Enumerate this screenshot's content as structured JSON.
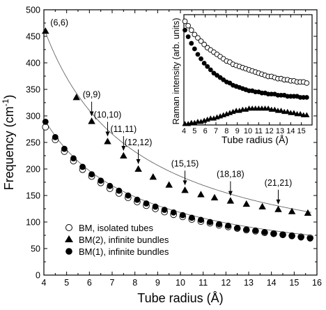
{
  "chart_data": [
    {
      "type": "scatter",
      "xlabel": "Tube radius (Å)",
      "ylabel": "Frequency (cm",
      "ylabel_sup": "-1",
      "ylabel_tail": ")",
      "xlim": [
        4,
        16
      ],
      "ylim": [
        0,
        500
      ],
      "xticks": [
        "4",
        "5",
        "6",
        "7",
        "8",
        "9",
        "10",
        "11",
        "12",
        "13",
        "14",
        "15",
        "16"
      ],
      "yticks": [
        "0",
        "50",
        "100",
        "150",
        "200",
        "250",
        "300",
        "350",
        "400",
        "450",
        "500"
      ],
      "series": [
        {
          "name": "BM, isolated tubes",
          "marker": "open-circle",
          "x": [
            4.07,
            4.5,
            4.9,
            5.3,
            5.7,
            6.1,
            6.5,
            6.9,
            7.3,
            7.7,
            8.1,
            8.5,
            8.9,
            9.3,
            9.7,
            10.1,
            10.5,
            10.9,
            11.3,
            11.7,
            12.1,
            12.5,
            12.9,
            13.3,
            13.7,
            14.1,
            14.5,
            14.9,
            15.3,
            15.7
          ],
          "y": [
            279,
            255,
            233,
            215,
            199,
            186,
            174,
            163,
            154,
            146,
            138,
            131,
            125,
            119,
            114,
            110,
            105,
            101,
            98,
            94,
            91,
            88,
            85,
            83,
            80,
            78,
            76,
            74,
            72,
            70
          ]
        },
        {
          "name": "BM(2), infinite bundles",
          "marker": "filled-triangle",
          "x": [
            4.07,
            5.43,
            6.1,
            6.8,
            7.5,
            8.15,
            8.8,
            9.5,
            10.2,
            10.9,
            11.5,
            12.2,
            12.9,
            13.6,
            14.3,
            14.9,
            15.6
          ],
          "y": [
            460,
            335,
            290,
            252,
            225,
            200,
            185,
            170,
            160,
            152,
            146,
            140,
            134,
            129,
            124,
            120,
            117
          ]
        },
        {
          "name": "BM(1), infinite bundles",
          "marker": "filled-circle",
          "x": [
            4.07,
            4.5,
            4.9,
            5.3,
            5.7,
            6.1,
            6.5,
            6.9,
            7.3,
            7.7,
            8.1,
            8.5,
            8.9,
            9.3,
            9.7,
            10.1,
            10.5,
            10.9,
            11.3,
            11.7,
            12.1,
            12.5,
            12.9,
            13.3,
            13.7,
            14.1,
            14.5,
            14.9,
            15.3,
            15.7
          ],
          "y": [
            289,
            260,
            238,
            220,
            204,
            190,
            178,
            168,
            159,
            150,
            142,
            135,
            129,
            123,
            118,
            113,
            108,
            104,
            100,
            96,
            93,
            89,
            86,
            84,
            81,
            78,
            76,
            74,
            71,
            69
          ]
        }
      ],
      "fit_curves": [
        {
          "series": "BM(2), infinite bundles",
          "coef": 1862,
          "exp": 1
        },
        {
          "series": "BM(1), infinite bundles",
          "coef": 1180,
          "exp": 1
        }
      ],
      "annotations": [
        {
          "label": "(6,6)",
          "x": 4.07,
          "y": 460,
          "arrow": false
        },
        {
          "label": "(9,9)",
          "x": 6.1,
          "y": 290,
          "arrow": true
        },
        {
          "label": "(10,10)",
          "x": 6.8,
          "y": 252,
          "arrow": true
        },
        {
          "label": "(11,11)",
          "x": 7.5,
          "y": 225,
          "arrow": true
        },
        {
          "label": "(12,12)",
          "x": 8.15,
          "y": 200,
          "arrow": true
        },
        {
          "label": "(15,15)",
          "x": 10.2,
          "y": 160,
          "arrow": true
        },
        {
          "label": "(18,18)",
          "x": 12.2,
          "y": 140,
          "arrow": true
        },
        {
          "label": "(21,21)",
          "x": 14.3,
          "y": 124,
          "arrow": true
        }
      ],
      "legend": {
        "placement": "bottom-left",
        "entries": [
          "BM, isolated tubes",
          "BM(2), infinite bundles",
          "BM(1), infinite bundles"
        ]
      },
      "grid": false
    },
    {
      "type": "scatter",
      "placement": "inset-top-right",
      "xlabel": "Tube radius (Å)",
      "ylabel": "Raman intensity (arb. units)",
      "xlim": [
        4,
        16
      ],
      "xticks": [
        "4",
        "5",
        "6",
        "7",
        "8",
        "9",
        "10",
        "11",
        "12",
        "13",
        "14",
        "15"
      ],
      "yticks_shown": false,
      "series": [
        {
          "name": "BM, isolated tubes",
          "marker": "open-circle",
          "x": [
            4.1,
            4.4,
            4.7,
            5.0,
            5.3,
            5.6,
            5.9,
            6.2,
            6.5,
            6.8,
            7.1,
            7.4,
            7.7,
            8.0,
            8.3,
            8.6,
            8.9,
            9.2,
            9.5,
            9.8,
            10.1,
            10.4,
            10.7,
            11.0,
            11.3,
            11.6,
            11.9,
            12.2,
            12.5,
            12.8,
            13.1,
            13.4,
            13.7,
            14.0,
            14.3,
            14.6,
            14.9,
            15.2,
            15.5
          ],
          "y": [
            0.94,
            0.9,
            0.86,
            0.82,
            0.79,
            0.76,
            0.73,
            0.7,
            0.68,
            0.66,
            0.64,
            0.62,
            0.6,
            0.58,
            0.57,
            0.55,
            0.54,
            0.53,
            0.52,
            0.51,
            0.5,
            0.49,
            0.48,
            0.47,
            0.46,
            0.45,
            0.44,
            0.44,
            0.43,
            0.42,
            0.42,
            0.41,
            0.41,
            0.4,
            0.4,
            0.39,
            0.39,
            0.39,
            0.38
          ]
        },
        {
          "name": "BM(1), infinite bundles",
          "marker": "filled-circle",
          "x": [
            4.1,
            4.4,
            4.7,
            5.0,
            5.3,
            5.6,
            5.9,
            6.2,
            6.5,
            6.8,
            7.1,
            7.4,
            7.7,
            8.0,
            8.3,
            8.6,
            8.9,
            9.2,
            9.5,
            9.8,
            10.1,
            10.4,
            10.7,
            11.0,
            11.3,
            11.6,
            11.9,
            12.2,
            12.5,
            12.8,
            13.1,
            13.4,
            13.7,
            14.0,
            14.3,
            14.6,
            14.9,
            15.2,
            15.5
          ],
          "y": [
            0.86,
            0.8,
            0.74,
            0.69,
            0.64,
            0.6,
            0.56,
            0.53,
            0.5,
            0.47,
            0.45,
            0.43,
            0.41,
            0.39,
            0.38,
            0.36,
            0.35,
            0.34,
            0.33,
            0.32,
            0.31,
            0.31,
            0.3,
            0.3,
            0.29,
            0.29,
            0.28,
            0.28,
            0.28,
            0.27,
            0.27,
            0.27,
            0.26,
            0.26,
            0.26,
            0.26,
            0.25,
            0.25,
            0.25
          ]
        },
        {
          "name": "BM(2), infinite bundles",
          "marker": "filled-triangle",
          "x": [
            4.1,
            4.4,
            4.7,
            5.0,
            5.3,
            5.6,
            5.9,
            6.2,
            6.5,
            6.8,
            7.1,
            7.4,
            7.7,
            8.0,
            8.3,
            8.6,
            8.9,
            9.2,
            9.5,
            9.8,
            10.1,
            10.4,
            10.7,
            11.0,
            11.3,
            11.6,
            11.9,
            12.2,
            12.5,
            12.8,
            13.1,
            13.4,
            13.7,
            14.0,
            14.3,
            14.6,
            14.9,
            15.2,
            15.5
          ],
          "y": [
            0.01,
            0.01,
            0.02,
            0.02,
            0.03,
            0.03,
            0.04,
            0.05,
            0.06,
            0.06,
            0.07,
            0.08,
            0.09,
            0.1,
            0.11,
            0.12,
            0.13,
            0.13,
            0.14,
            0.14,
            0.15,
            0.15,
            0.15,
            0.15,
            0.15,
            0.15,
            0.15,
            0.14,
            0.14,
            0.13,
            0.13,
            0.12,
            0.12,
            0.11,
            0.11,
            0.1,
            0.1,
            0.09,
            0.09
          ]
        }
      ],
      "ylim": [
        0,
        1
      ],
      "grid": false
    }
  ]
}
